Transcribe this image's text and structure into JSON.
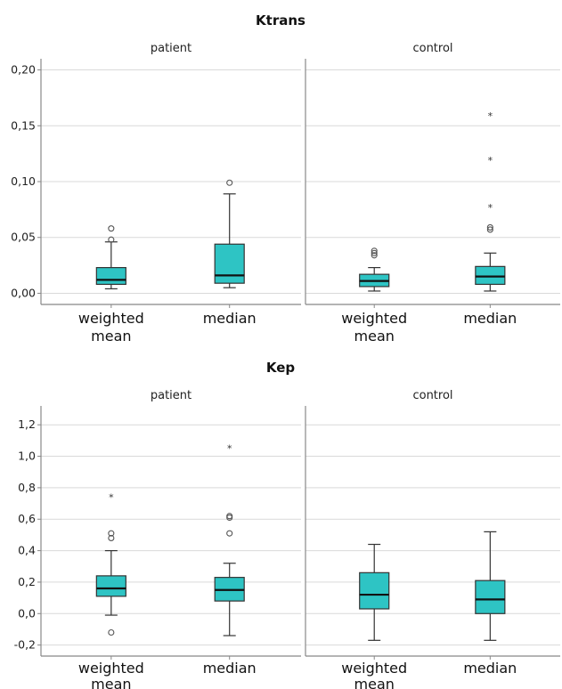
{
  "colors": {
    "box_fill": "#2ec4c4",
    "box_stroke": "#333333",
    "grid": "#d9d9d9",
    "frame": "#888888"
  },
  "chart_data": [
    {
      "type": "boxplot",
      "title": "Ktrans",
      "panels": [
        "patient",
        "control"
      ],
      "categories": [
        "weighted mean",
        "median"
      ],
      "category_lines": [
        [
          "weighted",
          "mean"
        ],
        [
          "median"
        ]
      ],
      "ylim": [
        -0.01,
        0.21
      ],
      "yticks": [
        0.0,
        0.05,
        0.1,
        0.15,
        0.2
      ],
      "ytick_labels": [
        "0,00",
        "0,05",
        "0,10",
        "0,15",
        "0,20"
      ],
      "grid": true,
      "boxes": [
        {
          "panel": "patient",
          "category": "weighted mean",
          "whisker_low": 0.004,
          "q1": 0.008,
          "median": 0.012,
          "q3": 0.023,
          "whisker_high": 0.046,
          "outliers": [
            0.058,
            0.048
          ],
          "extremes": []
        },
        {
          "panel": "patient",
          "category": "median",
          "whisker_low": 0.005,
          "q1": 0.009,
          "median": 0.016,
          "q3": 0.044,
          "whisker_high": 0.089,
          "outliers": [
            0.099
          ],
          "extremes": []
        },
        {
          "panel": "control",
          "category": "weighted mean",
          "whisker_low": 0.002,
          "q1": 0.006,
          "median": 0.011,
          "q3": 0.017,
          "whisker_high": 0.023,
          "outliers": [
            0.038,
            0.036,
            0.034
          ],
          "extremes": []
        },
        {
          "panel": "control",
          "category": "median",
          "whisker_low": 0.002,
          "q1": 0.008,
          "median": 0.015,
          "q3": 0.024,
          "whisker_high": 0.036,
          "outliers": [
            0.059,
            0.057
          ],
          "extremes": [
            0.159,
            0.119,
            0.077
          ]
        }
      ]
    },
    {
      "type": "boxplot",
      "title": "Kep",
      "panels": [
        "patient",
        "control"
      ],
      "categories": [
        "weighted mean",
        "median"
      ],
      "category_lines": [
        [
          "weighted",
          "mean"
        ],
        [
          "median"
        ]
      ],
      "ylim": [
        -0.27,
        1.32
      ],
      "yticks": [
        -0.2,
        0.0,
        0.2,
        0.4,
        0.6,
        0.8,
        1.0,
        1.2
      ],
      "ytick_labels": [
        "-0,2",
        "0,0",
        "0,2",
        "0,4",
        "0,6",
        "0,8",
        "1,0",
        "1,2"
      ],
      "grid": true,
      "boxes": [
        {
          "panel": "patient",
          "category": "weighted mean",
          "whisker_low": -0.01,
          "q1": 0.11,
          "median": 0.16,
          "q3": 0.24,
          "whisker_high": 0.4,
          "outliers": [
            0.51,
            0.48,
            -0.12
          ],
          "extremes": [
            0.74
          ]
        },
        {
          "panel": "patient",
          "category": "median",
          "whisker_low": -0.14,
          "q1": 0.08,
          "median": 0.15,
          "q3": 0.23,
          "whisker_high": 0.32,
          "outliers": [
            0.62,
            0.61,
            0.51
          ],
          "extremes": [
            1.05
          ]
        },
        {
          "panel": "control",
          "category": "weighted mean",
          "whisker_low": -0.17,
          "q1": 0.03,
          "median": 0.12,
          "q3": 0.26,
          "whisker_high": 0.44,
          "outliers": [],
          "extremes": []
        },
        {
          "panel": "control",
          "category": "median",
          "whisker_low": -0.17,
          "q1": 0.0,
          "median": 0.09,
          "q3": 0.21,
          "whisker_high": 0.52,
          "outliers": [],
          "extremes": []
        }
      ]
    }
  ]
}
